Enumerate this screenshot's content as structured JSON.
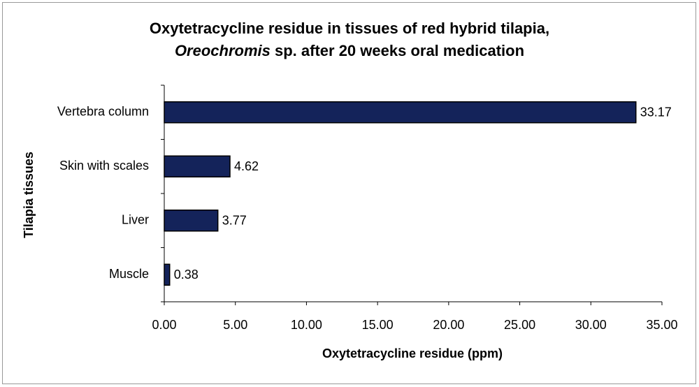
{
  "chart_data": {
    "type": "bar",
    "orientation": "horizontal",
    "title": "Oxytetracycline residue in tissues of red hybrid tilapia,",
    "subtitle_italic": "Oreochromis",
    "subtitle": "sp. after 20 weeks oral medication",
    "x_label": "Oxytetracycline residue (ppm)",
    "y_label": "Tilapia tissues",
    "categories": [
      "Vertebra column",
      "Skin with scales",
      "Liver",
      "Muscle"
    ],
    "values": [
      33.17,
      4.62,
      3.77,
      0.38
    ],
    "color": "#14235a",
    "xlim": [
      0,
      35
    ],
    "xticks": [
      {
        "value": 0,
        "label": "0.00"
      },
      {
        "value": 5,
        "label": "5.00"
      },
      {
        "value": 10,
        "label": "10.00"
      },
      {
        "value": 15,
        "label": "15.00"
      },
      {
        "value": 20,
        "label": "20.00"
      },
      {
        "value": 25,
        "label": "25.00"
      },
      {
        "value": 30,
        "label": "30.00"
      },
      {
        "value": 35,
        "label": "35.00"
      }
    ],
    "grid": false
  }
}
